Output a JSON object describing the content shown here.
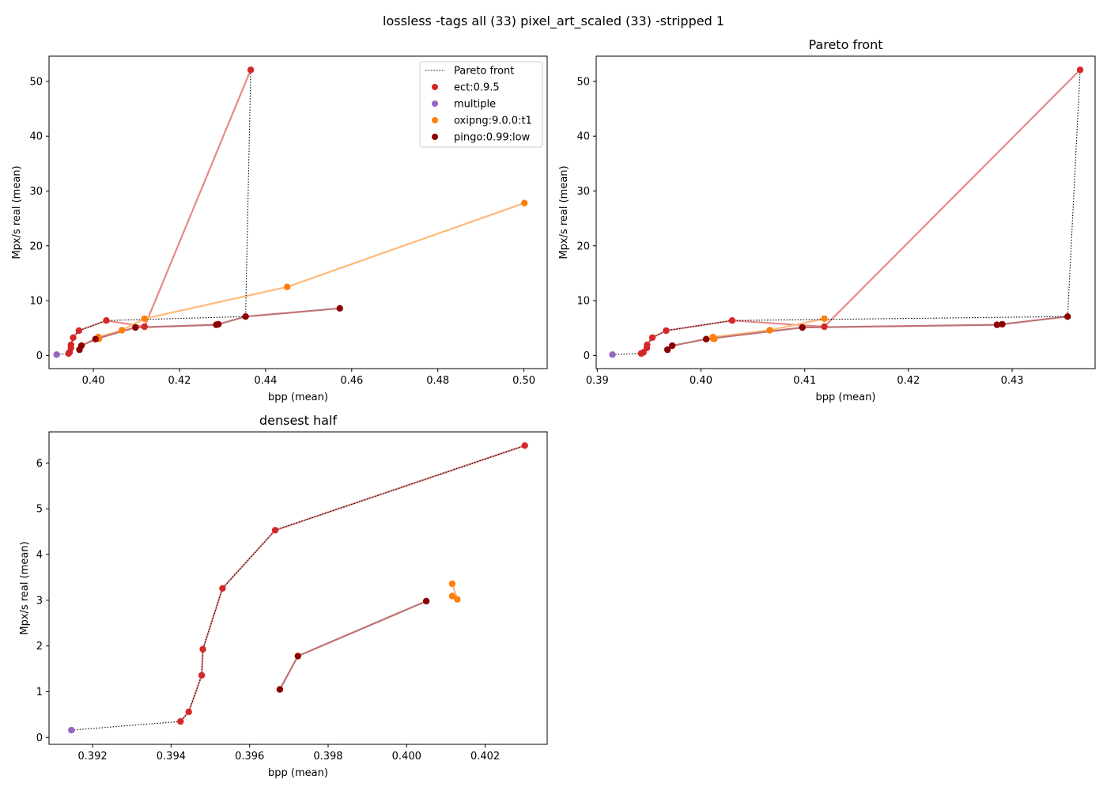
{
  "suptitle": "lossless -tags all (33) pixel_art_scaled (33) -stripped 1",
  "colors": {
    "ect:0.9.5": "#d62728",
    "multiple": "#9467bd",
    "oxipng:9.0.0:t1": "#ff7f0e",
    "pingo:0.99:low": "#8b0000",
    "pareto": "#000000"
  },
  "legend": [
    "Pareto front",
    "ect:0.9.5",
    "multiple",
    "oxipng:9.0.0:t1",
    "pingo:0.99:low"
  ],
  "chart_data": [
    {
      "type": "scatter",
      "title": "",
      "xlabel": "bpp (mean)",
      "ylabel": "Mpx/s real (mean)",
      "xlim": [
        0.3897,
        0.5054
      ],
      "ylim": [
        -2.4,
        54.6
      ],
      "xticks": [
        "0.40",
        "0.42",
        "0.44",
        "0.46",
        "0.48",
        "0.50"
      ],
      "xtick_values": [
        0.4,
        0.42,
        0.44,
        0.46,
        0.48,
        0.5
      ],
      "yticks": [
        "0",
        "10",
        "20",
        "30",
        "40",
        "50"
      ],
      "ytick_values": [
        0,
        10,
        20,
        30,
        40,
        50
      ],
      "grid": false,
      "legend_position": "top-right",
      "series": [
        {
          "name": "ect:0.9.5",
          "x": [
            0.39424,
            0.39445,
            0.39478,
            0.39481,
            0.39531,
            0.39665,
            0.40301,
            0.41189,
            0.43655
          ],
          "y": [
            0.35,
            0.56,
            1.36,
            1.93,
            3.26,
            4.53,
            6.38,
            5.25,
            52.1
          ]
        },
        {
          "name": "multiple",
          "x": [
            0.39146
          ],
          "y": [
            0.16
          ]
        },
        {
          "name": "oxipng:9.0.0:t1",
          "x": [
            0.40116,
            0.40129,
            0.40116,
            0.40663,
            0.41189,
            0.44501,
            0.50012
          ],
          "y": [
            3.09,
            3.02,
            3.36,
            4.6,
            6.7,
            12.5,
            27.8
          ]
        },
        {
          "name": "pingo:0.99:low",
          "x": [
            0.39677,
            0.39723,
            0.4005,
            0.40977,
            0.42854,
            0.42904,
            0.43535,
            0.45723
          ],
          "y": [
            1.05,
            1.78,
            2.98,
            5.1,
            5.6,
            5.7,
            7.1,
            8.6
          ]
        }
      ],
      "pareto": {
        "x": [
          0.39146,
          0.39424,
          0.39445,
          0.39478,
          0.39481,
          0.39531,
          0.39665,
          0.40301,
          0.43535,
          0.43655
        ],
        "y": [
          0.16,
          0.35,
          0.56,
          1.36,
          1.93,
          3.26,
          4.53,
          6.38,
          7.1,
          52.1
        ]
      }
    },
    {
      "type": "scatter",
      "title": "Pareto front",
      "xlabel": "bpp (mean)",
      "ylabel": "Mpx/s real (mean)",
      "xlim": [
        0.3899,
        0.438
      ],
      "ylim": [
        -2.4,
        54.6
      ],
      "xticks": [
        "0.39",
        "0.40",
        "0.41",
        "0.42",
        "0.43"
      ],
      "xtick_values": [
        0.39,
        0.4,
        0.41,
        0.42,
        0.43
      ],
      "yticks": [
        "0",
        "10",
        "20",
        "30",
        "40",
        "50"
      ],
      "ytick_values": [
        0,
        10,
        20,
        30,
        40,
        50
      ],
      "grid": false,
      "series": [
        {
          "name": "ect:0.9.5",
          "x": [
            0.39424,
            0.39445,
            0.39478,
            0.39481,
            0.39531,
            0.39665,
            0.40301,
            0.41189,
            0.43655
          ],
          "y": [
            0.35,
            0.56,
            1.36,
            1.93,
            3.26,
            4.53,
            6.38,
            5.25,
            52.1
          ]
        },
        {
          "name": "multiple",
          "x": [
            0.39146
          ],
          "y": [
            0.16
          ]
        },
        {
          "name": "oxipng:9.0.0:t1",
          "x": [
            0.40116,
            0.40129,
            0.40116,
            0.40663,
            0.41189
          ],
          "y": [
            3.09,
            3.02,
            3.36,
            4.6,
            6.7
          ]
        },
        {
          "name": "pingo:0.99:low",
          "x": [
            0.39677,
            0.39723,
            0.4005,
            0.40977,
            0.42854,
            0.42904,
            0.43535
          ],
          "y": [
            1.05,
            1.78,
            2.98,
            5.1,
            5.6,
            5.7,
            7.1
          ]
        }
      ],
      "pareto": {
        "x": [
          0.39146,
          0.39424,
          0.39445,
          0.39478,
          0.39481,
          0.39531,
          0.39665,
          0.40301,
          0.43535,
          0.43655
        ],
        "y": [
          0.16,
          0.35,
          0.56,
          1.36,
          1.93,
          3.26,
          4.53,
          6.38,
          7.1,
          52.1
        ]
      }
    },
    {
      "type": "scatter",
      "title": "densest half",
      "xlabel": "bpp (mean)",
      "ylabel": "Mpx/s real (mean)",
      "xlim": [
        0.39089,
        0.40358
      ],
      "ylim": [
        -0.15,
        6.68
      ],
      "xticks": [
        "0.392",
        "0.394",
        "0.396",
        "0.398",
        "0.400",
        "0.402"
      ],
      "xtick_values": [
        0.392,
        0.394,
        0.396,
        0.398,
        0.4,
        0.402
      ],
      "yticks": [
        "0",
        "1",
        "2",
        "3",
        "4",
        "5",
        "6"
      ],
      "ytick_values": [
        0,
        1,
        2,
        3,
        4,
        5,
        6
      ],
      "grid": false,
      "series": [
        {
          "name": "ect:0.9.5",
          "x": [
            0.39424,
            0.39445,
            0.39478,
            0.39481,
            0.39531,
            0.39665,
            0.40301
          ],
          "y": [
            0.35,
            0.56,
            1.36,
            1.93,
            3.26,
            4.53,
            6.38
          ]
        },
        {
          "name": "multiple",
          "x": [
            0.39146
          ],
          "y": [
            0.16
          ]
        },
        {
          "name": "oxipng:9.0.0:t1",
          "x": [
            0.40116,
            0.40129,
            0.40116
          ],
          "y": [
            3.09,
            3.02,
            3.36
          ]
        },
        {
          "name": "pingo:0.99:low",
          "x": [
            0.39677,
            0.39723,
            0.4005
          ],
          "y": [
            1.05,
            1.78,
            2.98
          ]
        }
      ],
      "pareto": {
        "x": [
          0.39146,
          0.39424,
          0.39445,
          0.39478,
          0.39481,
          0.39531,
          0.39665,
          0.40301
        ],
        "y": [
          0.16,
          0.35,
          0.56,
          1.36,
          1.93,
          3.26,
          4.53,
          6.38
        ]
      }
    }
  ]
}
